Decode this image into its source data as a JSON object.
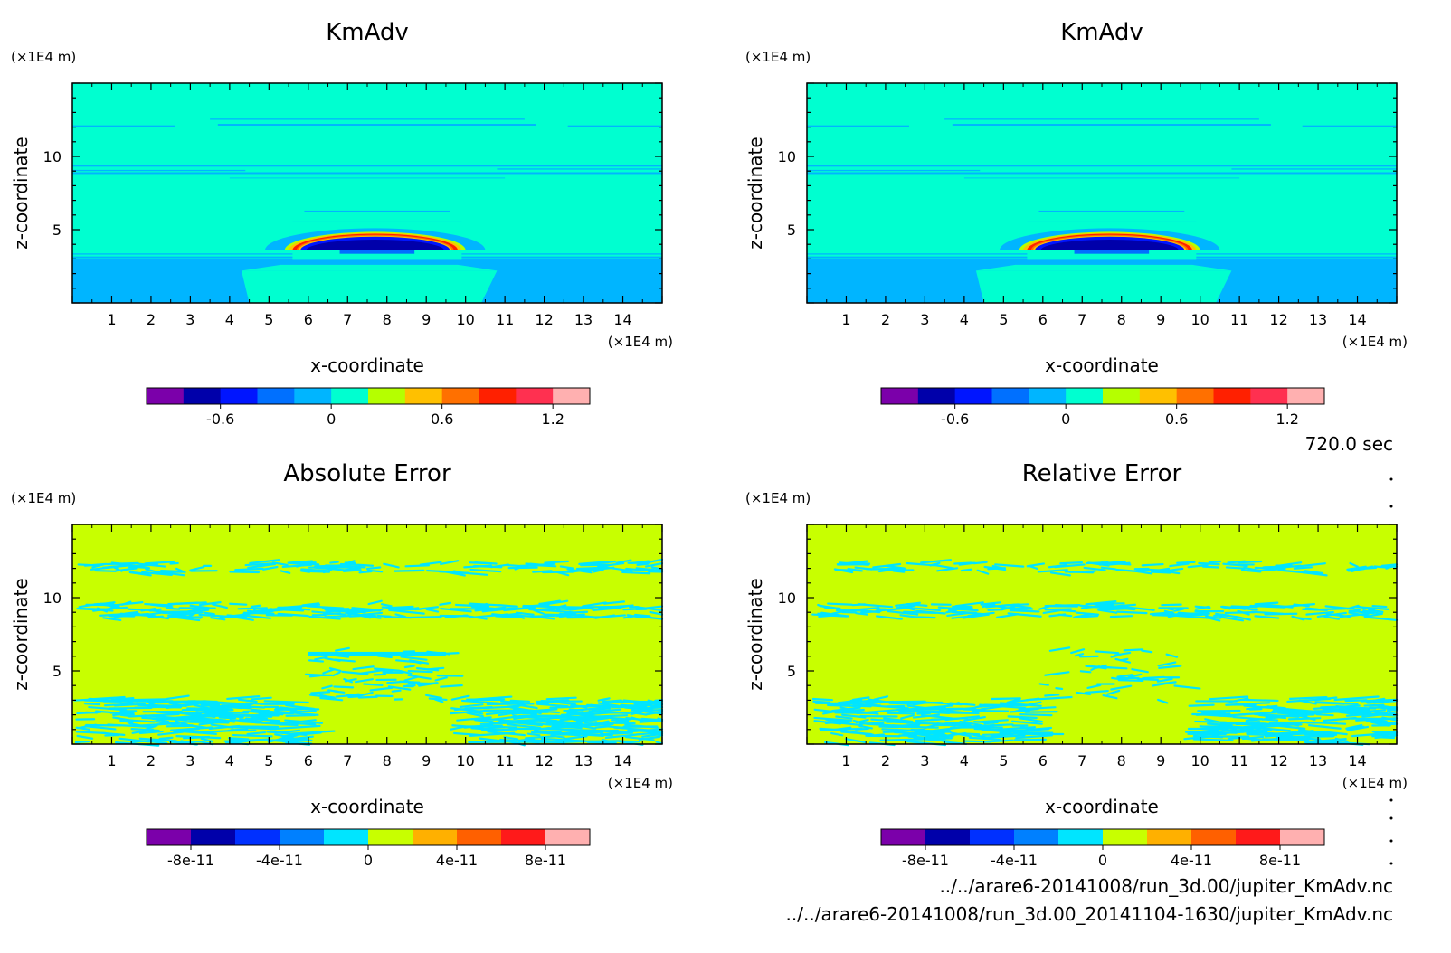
{
  "chart_data": [
    {
      "type": "heatmap",
      "title": "KmAdv",
      "xlabel": "x-coordinate",
      "ylabel": "z-coordinate",
      "x_unit": "(×1E4 m)",
      "y_unit": "(×1E4 m)",
      "xlim": [
        0,
        15
      ],
      "ylim": [
        0,
        15
      ],
      "x_ticks": [
        "1",
        "2",
        "3",
        "4",
        "5",
        "6",
        "7",
        "8",
        "9",
        "10",
        "11",
        "12",
        "13",
        "14"
      ],
      "y_ticks": [
        "5",
        "10"
      ],
      "colorbar": {
        "colors": [
          "#7b00aa",
          "#0000aa",
          "#0015ff",
          "#0070ff",
          "#00b5ff",
          "#00ffd0",
          "#b5ff00",
          "#ffc000",
          "#ff7000",
          "#ff2000",
          "#ff3050",
          "#ffb0b0"
        ],
        "tick_labels": [
          "-0.6",
          "0",
          "0.6",
          "1.2"
        ],
        "tick_values": [
          -0.6,
          0,
          0.6,
          1.2
        ],
        "range": [
          -1.0,
          1.4
        ]
      }
    },
    {
      "type": "heatmap",
      "title": "KmAdv",
      "xlabel": "x-coordinate",
      "ylabel": "z-coordinate",
      "x_unit": "(×1E4 m)",
      "y_unit": "(×1E4 m)",
      "xlim": [
        0,
        15
      ],
      "ylim": [
        0,
        15
      ],
      "x_ticks": [
        "1",
        "2",
        "3",
        "4",
        "5",
        "6",
        "7",
        "8",
        "9",
        "10",
        "11",
        "12",
        "13",
        "14"
      ],
      "y_ticks": [
        "5",
        "10"
      ],
      "colorbar": {
        "colors": [
          "#7b00aa",
          "#0000aa",
          "#0015ff",
          "#0070ff",
          "#00b5ff",
          "#00ffd0",
          "#b5ff00",
          "#ffc000",
          "#ff7000",
          "#ff2000",
          "#ff3050",
          "#ffb0b0"
        ],
        "tick_labels": [
          "-0.6",
          "0",
          "0.6",
          "1.2"
        ],
        "tick_values": [
          -0.6,
          0,
          0.6,
          1.2
        ],
        "range": [
          -1.0,
          1.4
        ]
      }
    },
    {
      "type": "heatmap",
      "title": "Absolute Error",
      "xlabel": "x-coordinate",
      "ylabel": "z-coordinate",
      "x_unit": "(×1E4 m)",
      "y_unit": "(×1E4 m)",
      "xlim": [
        0,
        15
      ],
      "ylim": [
        0,
        15
      ],
      "x_ticks": [
        "1",
        "2",
        "3",
        "4",
        "5",
        "6",
        "7",
        "8",
        "9",
        "10",
        "11",
        "12",
        "13",
        "14"
      ],
      "y_ticks": [
        "5",
        "10"
      ],
      "colorbar": {
        "colors": [
          "#7b00aa",
          "#0000aa",
          "#0030ff",
          "#0080ff",
          "#00e5ff",
          "#c8ff00",
          "#ffb000",
          "#ff6000",
          "#ff1a1a",
          "#ffb0b0"
        ],
        "tick_labels": [
          "-8e-11",
          "-4e-11",
          "0",
          "4e-11",
          "8e-11"
        ],
        "tick_values": [
          -8e-11,
          -4e-11,
          0,
          4e-11,
          8e-11
        ],
        "range": [
          -1e-10,
          1e-10
        ]
      }
    },
    {
      "type": "heatmap",
      "title": "Relative Error",
      "xlabel": "x-coordinate",
      "ylabel": "z-coordinate",
      "x_unit": "(×1E4 m)",
      "y_unit": "(×1E4 m)",
      "xlim": [
        0,
        15
      ],
      "ylim": [
        0,
        15
      ],
      "x_ticks": [
        "1",
        "2",
        "3",
        "4",
        "5",
        "6",
        "7",
        "8",
        "9",
        "10",
        "11",
        "12",
        "13",
        "14"
      ],
      "y_ticks": [
        "5",
        "10"
      ],
      "colorbar": {
        "colors": [
          "#7b00aa",
          "#0000aa",
          "#0030ff",
          "#0080ff",
          "#00e5ff",
          "#c8ff00",
          "#ffb000",
          "#ff6000",
          "#ff1a1a",
          "#ffb0b0"
        ],
        "tick_labels": [
          "-8e-11",
          "-4e-11",
          "0",
          "4e-11",
          "8e-11"
        ],
        "tick_values": [
          -8e-11,
          -4e-11,
          0,
          4e-11,
          8e-11
        ],
        "range": [
          -1e-10,
          1e-10
        ]
      }
    }
  ],
  "time_label": "720.0 sec",
  "file_1": "../../arare6-20141008/run_3d.00/jupiter_KmAdv.nc",
  "file_2": "../../arare6-20141008/run_3d.00_20141104-1630/jupiter_KmAdv.nc",
  "colors": {
    "kmadv_background": "#00ffd0",
    "kmadv_band": "#00b5ff",
    "error_background": "#c8ff00",
    "error_noise": "#00e5ff"
  }
}
